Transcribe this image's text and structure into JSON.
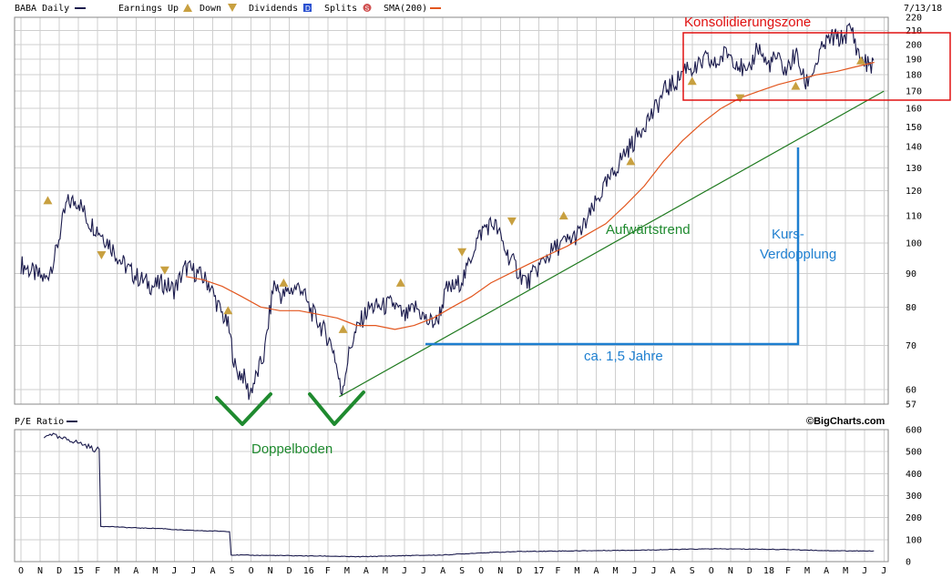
{
  "header": {
    "ticker": "BABA Daily",
    "earnings_label": "Earnings",
    "up_label": "Up",
    "down_label": "Down",
    "dividends_label": "Dividends",
    "splits_label": "Splits",
    "sma_label": "SMA(200)",
    "date": "7/13/18",
    "pe_label": "P/E Ratio",
    "credit": "©BigCharts.com"
  },
  "colors": {
    "price": "#1b1b4d",
    "sma": "#e2561e",
    "trend": "#1f7a1f",
    "annotation_red": "#e01010",
    "annotation_blue": "#1e7fd0",
    "annotation_green": "#1f8a2f",
    "earnings": "#c8a040"
  },
  "annotations": {
    "konsolidierung": "Konsolidierungszone",
    "aufwaertstrend": "Aufwärtstrend",
    "kurs": "Kurs-",
    "verdopplung": "Verdopplung",
    "jahre": "ca. 1,5 Jahre",
    "doppelboden": "Doppelboden"
  },
  "chart_data": [
    {
      "type": "line",
      "title": "BABA Daily",
      "y_scale": "log",
      "ylim": [
        57,
        220
      ],
      "yticks": [
        57,
        60,
        70,
        80,
        90,
        100,
        110,
        120,
        130,
        140,
        150,
        160,
        170,
        180,
        190,
        200,
        210,
        220
      ],
      "x_tick_labels": [
        "O",
        "N",
        "D",
        "15",
        "F",
        "M",
        "A",
        "M",
        "J",
        "J",
        "A",
        "S",
        "O",
        "N",
        "D",
        "16",
        "F",
        "M",
        "A",
        "M",
        "J",
        "J",
        "A",
        "S",
        "O",
        "N",
        "D",
        "17",
        "F",
        "M",
        "A",
        "M",
        "J",
        "J",
        "A",
        "S",
        "O",
        "N",
        "D",
        "18",
        "F",
        "M",
        "A",
        "M",
        "J",
        "J"
      ],
      "series": [
        {
          "name": "BABA",
          "t": [
            0,
            0.7,
            1.3,
            1.8,
            2.4,
            3.0,
            3.5,
            4.0,
            4.6,
            5.2,
            5.8,
            6.3,
            6.9,
            7.4,
            8.0,
            8.6,
            9.2,
            9.8,
            10.3,
            10.8,
            11.2,
            11.6,
            11.9,
            12.3,
            12.7,
            13.2,
            13.6,
            14.1,
            14.6,
            15.0,
            15.5,
            16.0,
            16.3,
            16.7,
            17.2,
            17.7,
            18.2,
            18.8,
            19.4,
            20.0,
            20.6,
            21.2,
            21.7,
            22.2,
            22.7,
            23.2,
            23.7,
            24.2,
            24.7,
            25.3,
            25.9,
            26.4,
            27.0,
            27.5,
            28.0,
            28.6,
            29.2,
            29.8,
            30.3,
            30.8,
            31.4,
            32.0,
            32.5,
            33.0,
            33.6,
            34.2,
            34.7,
            35.2,
            35.7,
            36.2,
            36.8,
            37.4,
            37.9,
            38.4,
            38.9,
            39.4,
            39.9,
            40.4,
            40.9,
            41.4,
            41.9,
            42.3,
            42.8,
            43.3,
            43.7,
            44.2,
            44.5
          ],
          "values": [
            93,
            90,
            88,
            96,
            115,
            116,
            108,
            105,
            100,
            94,
            90,
            88,
            86,
            87,
            85,
            92,
            90,
            87,
            80,
            75,
            64,
            63,
            59,
            63,
            68,
            87,
            83,
            85,
            86,
            80,
            76,
            72,
            69,
            59,
            70,
            76,
            80,
            80,
            81,
            77,
            80,
            76,
            76,
            85,
            86,
            90,
            100,
            106,
            107,
            97,
            91,
            87,
            92,
            96,
            99,
            101,
            104,
            112,
            120,
            126,
            136,
            143,
            152,
            158,
            171,
            176,
            186,
            183,
            190,
            186,
            195,
            188,
            178,
            200,
            186,
            191,
            182,
            194,
            174,
            185,
            200,
            205,
            204,
            212,
            192,
            186,
            188
          ]
        },
        {
          "name": "SMA(200)",
          "t": [
            8.6,
            9.5,
            10.5,
            11.5,
            12.5,
            13.5,
            14.5,
            15.5,
            16.5,
            17.5,
            18.5,
            19.5,
            20.5,
            21.5,
            22.5,
            23.5,
            24.5,
            25.5,
            26.5,
            27.5,
            28.5,
            29.5,
            30.5,
            31.5,
            32.5,
            33.5,
            34.5,
            35.5,
            36.5,
            37.5,
            38.5,
            39.5,
            40.5,
            41.5,
            42.5,
            43.5,
            44.5
          ],
          "values": [
            89,
            88,
            86,
            83,
            80,
            79,
            79,
            78,
            77,
            75,
            75,
            74,
            75,
            77,
            80,
            83,
            87,
            90,
            93,
            96,
            99,
            103,
            107,
            114,
            122,
            133,
            143,
            152,
            160,
            166,
            170,
            174,
            177,
            180,
            182,
            185,
            188
          ]
        },
        {
          "name": "Aufwärtstrend",
          "t": [
            16.6,
            45.0
          ],
          "values": [
            58.5,
            170
          ]
        }
      ],
      "earnings_events": [
        {
          "t": 1.4,
          "value": 116,
          "kind": "up"
        },
        {
          "t": 4.2,
          "value": 96,
          "kind": "down"
        },
        {
          "t": 7.5,
          "value": 91,
          "kind": "down"
        },
        {
          "t": 10.8,
          "value": 79,
          "kind": "up"
        },
        {
          "t": 13.7,
          "value": 87,
          "kind": "up"
        },
        {
          "t": 16.8,
          "value": 74,
          "kind": "up"
        },
        {
          "t": 19.8,
          "value": 87,
          "kind": "up"
        },
        {
          "t": 23.0,
          "value": 97,
          "kind": "down"
        },
        {
          "t": 25.6,
          "value": 108,
          "kind": "down"
        },
        {
          "t": 28.3,
          "value": 110,
          "kind": "up"
        },
        {
          "t": 31.8,
          "value": 133,
          "kind": "up"
        },
        {
          "t": 35.0,
          "value": 176,
          "kind": "up"
        },
        {
          "t": 37.5,
          "value": 166,
          "kind": "down"
        },
        {
          "t": 40.4,
          "value": 173,
          "kind": "up"
        },
        {
          "t": 43.8,
          "value": 189,
          "kind": "up"
        }
      ]
    },
    {
      "type": "line",
      "title": "P/E Ratio",
      "ylim": [
        0,
        600
      ],
      "yticks": [
        0,
        100,
        200,
        300,
        400,
        500,
        600
      ],
      "series": [
        {
          "name": "P/E Ratio",
          "t": [
            1.2,
            1.5,
            2.0,
            2.5,
            3.0,
            3.5,
            3.9,
            4.1,
            4.15,
            4.6,
            5.5,
            6.5,
            7.5,
            8.0,
            8.5,
            9.5,
            10.5,
            10.9,
            10.95,
            12.0,
            14.0,
            16.0,
            17.5,
            18.0,
            20.0,
            22.0,
            23.0,
            24.0,
            26.0,
            28.0,
            30.0,
            32.0,
            34.0,
            36.0,
            38.0,
            40.0,
            42.0,
            44.0,
            44.5
          ],
          "values": [
            560,
            585,
            560,
            555,
            540,
            525,
            505,
            515,
            160,
            160,
            155,
            152,
            150,
            145,
            143,
            140,
            138,
            137,
            30,
            29,
            27,
            25,
            22,
            23,
            27,
            30,
            35,
            40,
            46,
            48,
            50,
            52,
            55,
            58,
            57,
            55,
            50,
            48,
            48
          ]
        }
      ]
    }
  ]
}
